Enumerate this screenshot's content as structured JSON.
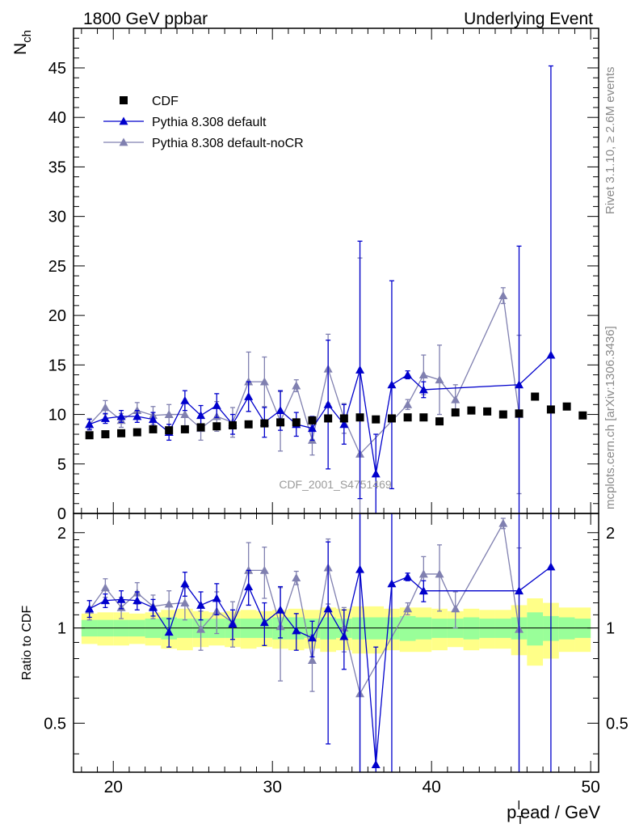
{
  "header": {
    "left": "1800 GeV ppbar",
    "right": "Underlying Event"
  },
  "side_text": {
    "rivet": "Rivet 3.1.10, ≥ 2.6M events",
    "mcplots": "mcplots.cern.ch [arXiv:1306.3436]"
  },
  "watermark": "CDF_2001_S4751469",
  "chart_data": [
    {
      "panel": "main",
      "type": "scatter",
      "ylabel": "N_ch",
      "ylim": [
        0,
        49
      ],
      "yticks": [
        0,
        5,
        10,
        15,
        20,
        25,
        30,
        35,
        40,
        45
      ],
      "legend_position": "top-left",
      "series": [
        {
          "name": "CDF",
          "marker": "square",
          "color": "#000000",
          "x": [
            18.5,
            19.5,
            20.5,
            21.5,
            22.5,
            23.5,
            24.5,
            25.5,
            26.5,
            27.5,
            28.5,
            29.5,
            30.5,
            31.5,
            32.5,
            33.5,
            34.5,
            35.5,
            36.5,
            37.5,
            38.5,
            39.5,
            40.5,
            41.5,
            42.5,
            43.5,
            44.5,
            45.5,
            46.5,
            47.5,
            48.5,
            49.5
          ],
          "y": [
            7.9,
            8.0,
            8.1,
            8.2,
            8.5,
            8.4,
            8.5,
            8.7,
            8.8,
            8.9,
            9.0,
            9.1,
            9.2,
            9.2,
            9.4,
            9.6,
            9.6,
            9.7,
            9.5,
            9.6,
            9.7,
            9.7,
            9.3,
            10.2,
            10.4,
            10.3,
            10.0,
            10.1,
            11.8,
            10.5,
            10.8,
            9.9
          ]
        },
        {
          "name": "Pythia 8.308 default",
          "marker": "triangle",
          "color": "#0000cc",
          "x": [
            18.5,
            19.5,
            20.5,
            21.5,
            22.5,
            23.5,
            24.5,
            25.5,
            26.5,
            27.5,
            28.5,
            29.5,
            30.5,
            31.5,
            32.5,
            33.5,
            34.5,
            35.5,
            36.5,
            37.5,
            38.5,
            39.5,
            45.5,
            47.5
          ],
          "y": [
            9.0,
            9.6,
            9.8,
            9.8,
            9.5,
            8.2,
            11.4,
            9.9,
            10.9,
            9.0,
            11.8,
            9.2,
            10.4,
            9.0,
            8.6,
            11.0,
            9.0,
            14.5,
            4.0,
            13.0,
            14.0,
            12.5,
            13.0,
            16.0
          ],
          "yerr": [
            0.5,
            0.5,
            0.6,
            0.6,
            0.7,
            0.8,
            1.0,
            1.0,
            1.2,
            1.0,
            1.5,
            1.5,
            2.0,
            1.2,
            1.2,
            6.5,
            2.0,
            13.0,
            4.0,
            10.5,
            0.4,
            0.8,
            14.0,
            29.2
          ]
        },
        {
          "name": "Pythia 8.308 default-noCR",
          "marker": "triangle",
          "color": "#8080b0",
          "x": [
            18.5,
            19.5,
            20.5,
            21.5,
            22.5,
            23.5,
            24.5,
            25.5,
            26.5,
            27.5,
            28.5,
            29.5,
            30.5,
            31.5,
            32.5,
            33.5,
            34.5,
            35.5,
            38.5,
            39.5,
            40.5,
            41.5,
            44.5,
            45.5
          ],
          "y": [
            9.0,
            10.7,
            9.4,
            10.4,
            9.9,
            10.0,
            10.0,
            8.6,
            9.8,
            9.2,
            13.3,
            13.3,
            9.3,
            12.9,
            7.4,
            14.6,
            9.6,
            6.0,
            11.0,
            14.0,
            13.5,
            11.5,
            22.0,
            10.0
          ],
          "yerr": [
            0.6,
            0.7,
            0.7,
            0.8,
            0.9,
            1.0,
            1.2,
            1.2,
            1.5,
            1.5,
            3.0,
            2.5,
            3.0,
            0.6,
            1.5,
            3.5,
            1.5,
            19.8,
            0.5,
            2.0,
            3.5,
            1.5,
            0.8,
            8.0
          ]
        }
      ]
    },
    {
      "panel": "ratio",
      "type": "scatter",
      "ylabel": "Ratio to CDF",
      "xlabel": "p_T^lead / GeV",
      "xlim": [
        17.5,
        50.5
      ],
      "xticks": [
        20,
        30,
        40,
        50
      ],
      "ylim": [
        0.35,
        2.3
      ],
      "yticks": [
        0.5,
        1,
        2
      ],
      "bands": {
        "bins": [
          18,
          19,
          20,
          21,
          22,
          23,
          24,
          25,
          26,
          27,
          28,
          29,
          30,
          31,
          32,
          33,
          34,
          35,
          36,
          37,
          38,
          39,
          40,
          41,
          42,
          43,
          44,
          45,
          46,
          47,
          48,
          49,
          50
        ],
        "inner": [
          0.06,
          0.06,
          0.06,
          0.06,
          0.07,
          0.08,
          0.07,
          0.07,
          0.07,
          0.07,
          0.07,
          0.07,
          0.08,
          0.08,
          0.07,
          0.08,
          0.07,
          0.08,
          0.08,
          0.08,
          0.09,
          0.08,
          0.07,
          0.07,
          0.08,
          0.07,
          0.07,
          0.08,
          0.12,
          0.09,
          0.08,
          0.07
        ],
        "outer": [
          0.11,
          0.12,
          0.12,
          0.11,
          0.12,
          0.14,
          0.15,
          0.13,
          0.12,
          0.13,
          0.14,
          0.13,
          0.14,
          0.15,
          0.14,
          0.16,
          0.15,
          0.17,
          0.17,
          0.15,
          0.16,
          0.16,
          0.15,
          0.13,
          0.15,
          0.14,
          0.14,
          0.18,
          0.24,
          0.2,
          0.16,
          0.16
        ],
        "inner_color": "#99ff99",
        "outer_color": "#ffff88"
      },
      "series": [
        {
          "name": "Pythia 8.308 default",
          "color": "#0000cc",
          "x": [
            18.5,
            19.5,
            20.5,
            21.5,
            22.5,
            23.5,
            24.5,
            25.5,
            26.5,
            27.5,
            28.5,
            29.5,
            30.5,
            31.5,
            32.5,
            33.5,
            34.5,
            35.5,
            36.5,
            37.5,
            38.5,
            39.5,
            45.5,
            47.5
          ],
          "y": [
            1.15,
            1.22,
            1.23,
            1.22,
            1.16,
            0.97,
            1.38,
            1.18,
            1.24,
            1.03,
            1.35,
            1.04,
            1.14,
            0.98,
            0.93,
            1.15,
            0.94,
            1.53,
            0.37,
            1.38,
            1.45,
            1.31,
            1.31,
            1.56
          ],
          "yerr": [
            0.07,
            0.06,
            0.08,
            0.08,
            0.07,
            0.1,
            0.12,
            0.12,
            0.14,
            0.11,
            0.17,
            0.16,
            0.21,
            0.13,
            0.12,
            0.72,
            0.2,
            1.3,
            0.5,
            1.1,
            0.04,
            0.1,
            1.4,
            2.8
          ]
        },
        {
          "name": "Pythia 8.308 default-noCR",
          "color": "#8080b0",
          "x": [
            18.5,
            19.5,
            20.5,
            21.5,
            22.5,
            23.5,
            24.5,
            25.5,
            26.5,
            27.5,
            28.5,
            29.5,
            30.5,
            31.5,
            32.5,
            33.5,
            34.5,
            35.5,
            38.5,
            39.5,
            40.5,
            41.5,
            44.5,
            45.5
          ],
          "y": [
            1.14,
            1.34,
            1.16,
            1.29,
            1.17,
            1.19,
            1.2,
            0.99,
            1.13,
            1.04,
            1.52,
            1.52,
            1.01,
            1.44,
            0.79,
            1.55,
            1.0,
            0.62,
            1.15,
            1.48,
            1.48,
            1.15,
            2.14,
            0.99
          ],
          "yerr": [
            0.08,
            0.09,
            0.09,
            0.1,
            0.1,
            0.12,
            0.14,
            0.14,
            0.17,
            0.17,
            0.34,
            0.28,
            0.33,
            0.07,
            0.16,
            0.36,
            0.16,
            2.0,
            0.05,
            0.2,
            0.35,
            0.15,
            0.08,
            0.8
          ]
        }
      ]
    }
  ]
}
